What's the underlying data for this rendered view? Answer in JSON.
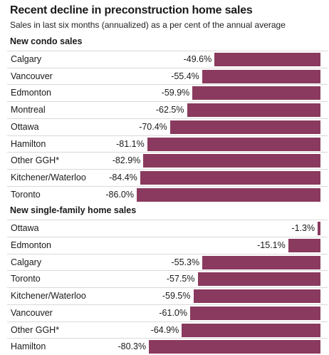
{
  "chart_data": {
    "type": "bar",
    "orientation": "horizontal",
    "title": "Recent decline in preconstruction home sales",
    "subtitle": "Sales in last six months (annualized) as a per cent of the annual average",
    "bar_color": "#8a3a5e",
    "value_axis_range": [
      -100,
      0
    ],
    "panels": [
      {
        "header": "New condo sales",
        "categories": [
          "Calgary",
          "Vancouver",
          "Edmonton",
          "Montreal",
          "Ottawa",
          "Hamilton",
          "Other GGH*",
          "Kitchener/Waterloo",
          "Toronto"
        ],
        "values": [
          -49.6,
          -55.4,
          -59.9,
          -62.5,
          -70.4,
          -81.1,
          -82.9,
          -84.4,
          -86.0
        ],
        "labels": [
          "-49.6%",
          "-55.4%",
          "-59.9%",
          "-62.5%",
          "-70.4%",
          "-81.1%",
          "-82.9%",
          "-84.4%",
          "-86.0%"
        ]
      },
      {
        "header": "New single-family home sales",
        "categories": [
          "Ottawa",
          "Edmonton",
          "Calgary",
          "Toronto",
          "Kitchener/Waterloo",
          "Vancouver",
          "Other GGH*",
          "Hamilton"
        ],
        "values": [
          -1.3,
          -15.1,
          -55.3,
          -57.5,
          -59.5,
          -61.0,
          -64.9,
          -80.3
        ],
        "labels": [
          "-1.3%",
          "-15.1%",
          "-55.3%",
          "-57.5%",
          "-59.5%",
          "-61.0%",
          "-64.9%",
          "-80.3%"
        ]
      }
    ]
  }
}
